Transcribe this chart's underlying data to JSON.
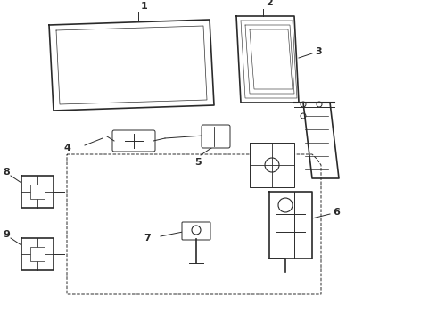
{
  "bg_color": "#ffffff",
  "line_color": "#2a2a2a",
  "label_color": "#000000",
  "figsize": [
    4.9,
    3.6
  ],
  "dpi": 100,
  "xlim": [
    0,
    490
  ],
  "ylim": [
    0,
    360
  ]
}
